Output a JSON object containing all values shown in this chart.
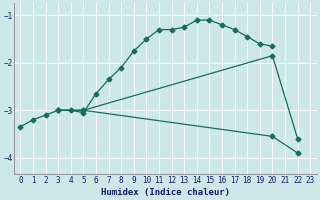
{
  "xlabel": "Humidex (Indice chaleur)",
  "xlim": [
    -0.5,
    23.5
  ],
  "ylim": [
    -4.35,
    -0.75
  ],
  "yticks": [
    -4,
    -3,
    -2,
    -1
  ],
  "xticks": [
    0,
    1,
    2,
    3,
    4,
    5,
    6,
    7,
    8,
    9,
    10,
    11,
    12,
    13,
    14,
    15,
    16,
    17,
    18,
    19,
    20,
    21,
    22,
    23
  ],
  "bg_color": "#cce8e8",
  "grid_color": "#ffffff",
  "line_color": "#1a6b5a",
  "line1_x": [
    0,
    1,
    2,
    3,
    4,
    5,
    6,
    7,
    8,
    9,
    10,
    11,
    12,
    13,
    14,
    15,
    16,
    17,
    18,
    19,
    20
  ],
  "line1_y": [
    -3.35,
    -3.2,
    -3.1,
    -3.0,
    -3.0,
    -3.05,
    -2.65,
    -2.35,
    -2.1,
    -1.75,
    -1.5,
    -1.3,
    -1.3,
    -1.25,
    -1.1,
    -1.1,
    -1.2,
    -1.3,
    -1.45,
    -1.6,
    -1.65
  ],
  "line2_x": [
    3,
    5,
    20,
    22
  ],
  "line2_y": [
    -3.0,
    -3.0,
    -1.85,
    -3.6
  ],
  "line3_x": [
    3,
    5,
    20,
    22
  ],
  "line3_y": [
    -3.0,
    -3.0,
    -3.55,
    -3.9
  ]
}
